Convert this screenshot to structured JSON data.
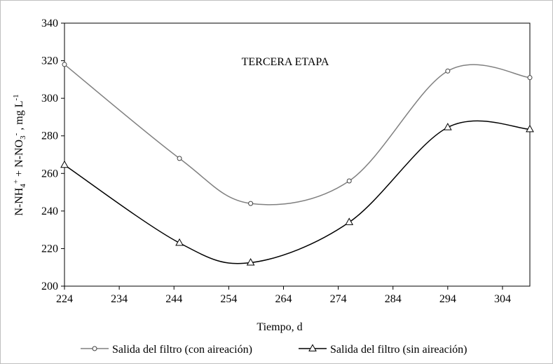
{
  "chart_data": {
    "type": "line",
    "title": "TERCERA ETAPA",
    "xlabel": "Tiempo, d",
    "ylabel": {
      "p1": "N-NH",
      "p1_sub": "4",
      "p1_sup": "+",
      "p2": " + N-NO",
      "p2_sub": "3",
      "p2_sup": "-",
      "p3": " , mg L",
      "p3_sup": "-1"
    },
    "xlim": [
      224,
      309
    ],
    "ylim": [
      200,
      340
    ],
    "xticks": [
      224,
      234,
      244,
      254,
      264,
      274,
      284,
      294,
      304
    ],
    "yticks": [
      200,
      220,
      240,
      260,
      280,
      300,
      320,
      340
    ],
    "grid": false,
    "legend_position": "bottom",
    "series": [
      {
        "name": "Salida del filtro (con aireación)",
        "marker": "circle",
        "color": "#808080",
        "x": [
          224,
          245,
          258,
          276,
          294,
          309
        ],
        "y": [
          318,
          268,
          244,
          256,
          314.5,
          311
        ]
      },
      {
        "name": "Salida del filtro (sin aireación)",
        "marker": "triangle",
        "color": "#000000",
        "x": [
          224,
          245,
          258,
          276,
          294,
          309
        ],
        "y": [
          264.5,
          223,
          212.5,
          234,
          284.5,
          283.5
        ]
      }
    ]
  }
}
